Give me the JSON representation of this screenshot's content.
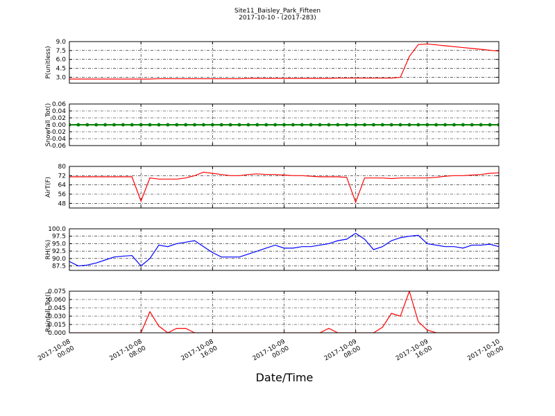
{
  "chart_data": [
    {
      "type": "line",
      "title": "Site11_Baisley_Park_Fifteen",
      "subtitle": "2017-10-10 - (2017-283)",
      "ylabel": "P(unitless)",
      "color": "#ff0000",
      "x": [
        "2017-10-08 00:00",
        "2017-10-08 01:00",
        "2017-10-08 02:00",
        "2017-10-08 03:00",
        "2017-10-08 04:00",
        "2017-10-08 05:00",
        "2017-10-08 06:00",
        "2017-10-08 07:00",
        "2017-10-08 08:00",
        "2017-10-08 09:00",
        "2017-10-08 10:00",
        "2017-10-08 11:00",
        "2017-10-08 12:00",
        "2017-10-08 13:00",
        "2017-10-08 14:00",
        "2017-10-08 15:00",
        "2017-10-08 16:00",
        "2017-10-08 17:00",
        "2017-10-08 18:00",
        "2017-10-08 19:00",
        "2017-10-08 20:00",
        "2017-10-08 21:00",
        "2017-10-08 22:00",
        "2017-10-08 23:00",
        "2017-10-09 00:00",
        "2017-10-09 01:00",
        "2017-10-09 02:00",
        "2017-10-09 03:00",
        "2017-10-09 04:00",
        "2017-10-09 05:00",
        "2017-10-09 06:00",
        "2017-10-09 07:00",
        "2017-10-09 08:00",
        "2017-10-09 09:00",
        "2017-10-09 10:00",
        "2017-10-09 11:00",
        "2017-10-09 12:00",
        "2017-10-09 13:00",
        "2017-10-09 14:00",
        "2017-10-09 15:00",
        "2017-10-09 16:00",
        "2017-10-09 17:00",
        "2017-10-09 18:00",
        "2017-10-09 19:00",
        "2017-10-09 20:00",
        "2017-10-09 21:00",
        "2017-10-09 22:00",
        "2017-10-09 23:00",
        "2017-10-10 00:00"
      ],
      "values": [
        2.7,
        2.7,
        2.7,
        2.7,
        2.7,
        2.7,
        2.7,
        2.7,
        2.7,
        2.7,
        2.75,
        2.75,
        2.75,
        2.75,
        2.75,
        2.75,
        2.75,
        2.75,
        2.75,
        2.75,
        2.8,
        2.8,
        2.8,
        2.8,
        2.8,
        2.8,
        2.8,
        2.8,
        2.8,
        2.8,
        2.85,
        2.85,
        2.85,
        2.85,
        2.85,
        2.85,
        2.85,
        3.0,
        6.5,
        8.5,
        8.6,
        8.45,
        8.3,
        8.15,
        8.0,
        7.85,
        7.7,
        7.55,
        7.4
      ],
      "xlim": [
        "2017-10-08 00:00",
        "2017-10-10 00:00"
      ],
      "xticks": [
        "2017-10-08 00:00",
        "2017-10-08 08:00",
        "2017-10-08 16:00",
        "2017-10-09 00:00",
        "2017-10-09 08:00",
        "2017-10-09 16:00",
        "2017-10-10 00:00"
      ],
      "ylim": [
        2,
        9
      ],
      "yticks": [
        {
          "value": 3,
          "label": "3.0"
        },
        4.5,
        {
          "value": 6,
          "label": "6.0"
        },
        7.5,
        {
          "value": 9,
          "label": "9.0"
        }
      ],
      "grid": true
    },
    {
      "type": "line",
      "ylabel": "Snowfall_Tot()",
      "color": "#008000",
      "markers": true,
      "x": [
        "2017-10-08 00:00",
        "2017-10-08 01:00",
        "2017-10-08 02:00",
        "2017-10-08 03:00",
        "2017-10-08 04:00",
        "2017-10-08 05:00",
        "2017-10-08 06:00",
        "2017-10-08 07:00",
        "2017-10-08 08:00",
        "2017-10-08 09:00",
        "2017-10-08 10:00",
        "2017-10-08 11:00",
        "2017-10-08 12:00",
        "2017-10-08 13:00",
        "2017-10-08 14:00",
        "2017-10-08 15:00",
        "2017-10-08 16:00",
        "2017-10-08 17:00",
        "2017-10-08 18:00",
        "2017-10-08 19:00",
        "2017-10-08 20:00",
        "2017-10-08 21:00",
        "2017-10-08 22:00",
        "2017-10-08 23:00",
        "2017-10-09 00:00",
        "2017-10-09 01:00",
        "2017-10-09 02:00",
        "2017-10-09 03:00",
        "2017-10-09 04:00",
        "2017-10-09 05:00",
        "2017-10-09 06:00",
        "2017-10-09 07:00",
        "2017-10-09 08:00",
        "2017-10-09 09:00",
        "2017-10-09 10:00",
        "2017-10-09 11:00",
        "2017-10-09 12:00",
        "2017-10-09 13:00",
        "2017-10-09 14:00",
        "2017-10-09 15:00",
        "2017-10-09 16:00",
        "2017-10-09 17:00",
        "2017-10-09 18:00",
        "2017-10-09 19:00",
        "2017-10-09 20:00",
        "2017-10-09 21:00",
        "2017-10-09 22:00",
        "2017-10-09 23:00",
        "2017-10-10 00:00"
      ],
      "values": [
        0,
        0,
        0,
        0,
        0,
        0,
        0,
        0,
        0,
        0,
        0,
        0,
        0,
        0,
        0,
        0,
        0,
        0,
        0,
        0,
        0,
        0,
        0,
        0,
        0,
        0,
        0,
        0,
        0,
        0,
        0,
        0,
        0,
        0,
        0,
        0,
        0,
        0,
        0,
        0,
        0,
        0,
        0,
        0,
        0,
        0,
        0,
        0,
        0
      ],
      "xlim": [
        "2017-10-08 00:00",
        "2017-10-10 00:00"
      ],
      "xticks": [
        "2017-10-08 00:00",
        "2017-10-08 08:00",
        "2017-10-08 16:00",
        "2017-10-09 00:00",
        "2017-10-09 08:00",
        "2017-10-09 16:00",
        "2017-10-10 00:00"
      ],
      "ylim": [
        -0.06,
        0.06
      ],
      "yticks": [
        -0.06,
        -0.04,
        -0.02,
        {
          "value": 0,
          "label": "0.00"
        },
        0.02,
        0.04,
        0.06
      ],
      "grid": true
    },
    {
      "type": "line",
      "ylabel": "AirT(F)",
      "color": "#ff0000",
      "x": [
        "2017-10-08 00:00",
        "2017-10-08 01:00",
        "2017-10-08 02:00",
        "2017-10-08 03:00",
        "2017-10-08 04:00",
        "2017-10-08 05:00",
        "2017-10-08 06:00",
        "2017-10-08 07:00",
        "2017-10-08 08:00",
        "2017-10-08 09:00",
        "2017-10-08 10:00",
        "2017-10-08 11:00",
        "2017-10-08 12:00",
        "2017-10-08 13:00",
        "2017-10-08 14:00",
        "2017-10-08 15:00",
        "2017-10-08 16:00",
        "2017-10-08 17:00",
        "2017-10-08 18:00",
        "2017-10-08 19:00",
        "2017-10-08 20:00",
        "2017-10-08 21:00",
        "2017-10-08 22:00",
        "2017-10-08 23:00",
        "2017-10-09 00:00",
        "2017-10-09 01:00",
        "2017-10-09 02:00",
        "2017-10-09 03:00",
        "2017-10-09 04:00",
        "2017-10-09 05:00",
        "2017-10-09 06:00",
        "2017-10-09 07:00",
        "2017-10-09 08:00",
        "2017-10-09 09:00",
        "2017-10-09 10:00",
        "2017-10-09 11:00",
        "2017-10-09 12:00",
        "2017-10-09 13:00",
        "2017-10-09 14:00",
        "2017-10-09 15:00",
        "2017-10-09 16:00",
        "2017-10-09 17:00",
        "2017-10-09 18:00",
        "2017-10-09 19:00",
        "2017-10-09 20:00",
        "2017-10-09 21:00",
        "2017-10-09 22:00",
        "2017-10-09 23:00",
        "2017-10-10 00:00"
      ],
      "values": [
        71,
        71,
        71,
        71,
        71,
        71,
        71,
        71,
        50,
        70,
        69,
        69,
        69,
        70,
        72,
        75,
        74,
        73,
        72,
        72,
        73,
        73.5,
        73,
        73,
        72.5,
        72,
        72,
        71.5,
        71,
        71,
        71,
        70.5,
        49,
        70,
        70,
        70,
        69.5,
        70,
        70,
        70,
        70,
        70.5,
        71.5,
        72,
        72,
        72.5,
        73,
        74,
        74.5
      ],
      "xlim": [
        "2017-10-08 00:00",
        "2017-10-10 00:00"
      ],
      "xticks": [
        "2017-10-08 00:00",
        "2017-10-08 08:00",
        "2017-10-08 16:00",
        "2017-10-09 00:00",
        "2017-10-09 08:00",
        "2017-10-09 16:00",
        "2017-10-10 00:00"
      ],
      "ylim": [
        44,
        80
      ],
      "yticks": [
        48,
        56,
        64,
        72,
        80
      ],
      "grid": true
    },
    {
      "type": "line",
      "ylabel": "RH(%)",
      "color": "#0000ff",
      "x": [
        "2017-10-08 00:00",
        "2017-10-08 01:00",
        "2017-10-08 02:00",
        "2017-10-08 03:00",
        "2017-10-08 04:00",
        "2017-10-08 05:00",
        "2017-10-08 06:00",
        "2017-10-08 07:00",
        "2017-10-08 08:00",
        "2017-10-08 09:00",
        "2017-10-08 10:00",
        "2017-10-08 11:00",
        "2017-10-08 12:00",
        "2017-10-08 13:00",
        "2017-10-08 14:00",
        "2017-10-08 15:00",
        "2017-10-08 16:00",
        "2017-10-08 17:00",
        "2017-10-08 18:00",
        "2017-10-08 19:00",
        "2017-10-08 20:00",
        "2017-10-08 21:00",
        "2017-10-08 22:00",
        "2017-10-08 23:00",
        "2017-10-09 00:00",
        "2017-10-09 01:00",
        "2017-10-09 02:00",
        "2017-10-09 03:00",
        "2017-10-09 04:00",
        "2017-10-09 05:00",
        "2017-10-09 06:00",
        "2017-10-09 07:00",
        "2017-10-09 08:00",
        "2017-10-09 09:00",
        "2017-10-09 10:00",
        "2017-10-09 11:00",
        "2017-10-09 12:00",
        "2017-10-09 13:00",
        "2017-10-09 14:00",
        "2017-10-09 15:00",
        "2017-10-09 16:00",
        "2017-10-09 17:00",
        "2017-10-09 18:00",
        "2017-10-09 19:00",
        "2017-10-09 20:00",
        "2017-10-09 21:00",
        "2017-10-09 22:00",
        "2017-10-09 23:00",
        "2017-10-10 00:00"
      ],
      "values": [
        89,
        87.5,
        87.8,
        88.5,
        89.5,
        90.5,
        90.8,
        91,
        87.5,
        90,
        94.5,
        94,
        95,
        95.5,
        96,
        94,
        92,
        90.5,
        90.5,
        90.5,
        91.5,
        92.5,
        93.5,
        94.5,
        93.5,
        93.5,
        94,
        94,
        94.5,
        95,
        96,
        96.5,
        98.5,
        96.5,
        93,
        94,
        96,
        97,
        97.5,
        97.8,
        95,
        94.5,
        94,
        94,
        93.5,
        94.5,
        94.5,
        94.8,
        94
      ],
      "xlim": [
        "2017-10-08 00:00",
        "2017-10-10 00:00"
      ],
      "xticks": [
        "2017-10-08 00:00",
        "2017-10-08 08:00",
        "2017-10-08 16:00",
        "2017-10-09 00:00",
        "2017-10-09 08:00",
        "2017-10-09 16:00",
        "2017-10-10 00:00"
      ],
      "ylim": [
        86,
        100
      ],
      "yticks": [
        87.5,
        {
          "value": 90,
          "label": "90.0"
        },
        92.5,
        {
          "value": 95,
          "label": "95.0"
        },
        97.5,
        {
          "value": 100,
          "label": "100.0"
        }
      ],
      "grid": true
    },
    {
      "type": "line",
      "ylabel": "Rainfall_Tot()",
      "xlabel": "Date/Time",
      "color": "#ff0000",
      "x": [
        "2017-10-08 00:00",
        "2017-10-08 01:00",
        "2017-10-08 02:00",
        "2017-10-08 03:00",
        "2017-10-08 04:00",
        "2017-10-08 05:00",
        "2017-10-08 06:00",
        "2017-10-08 07:00",
        "2017-10-08 08:00",
        "2017-10-08 09:00",
        "2017-10-08 10:00",
        "2017-10-08 11:00",
        "2017-10-08 12:00",
        "2017-10-08 13:00",
        "2017-10-08 14:00",
        "2017-10-08 15:00",
        "2017-10-08 16:00",
        "2017-10-08 17:00",
        "2017-10-08 18:00",
        "2017-10-08 19:00",
        "2017-10-08 20:00",
        "2017-10-08 21:00",
        "2017-10-08 22:00",
        "2017-10-08 23:00",
        "2017-10-09 00:00",
        "2017-10-09 01:00",
        "2017-10-09 02:00",
        "2017-10-09 03:00",
        "2017-10-09 04:00",
        "2017-10-09 05:00",
        "2017-10-09 06:00",
        "2017-10-09 07:00",
        "2017-10-09 08:00",
        "2017-10-09 09:00",
        "2017-10-09 10:00",
        "2017-10-09 11:00",
        "2017-10-09 12:00",
        "2017-10-09 13:00",
        "2017-10-09 14:00",
        "2017-10-09 15:00",
        "2017-10-09 16:00",
        "2017-10-09 17:00",
        "2017-10-09 18:00",
        "2017-10-09 19:00",
        "2017-10-09 20:00",
        "2017-10-09 21:00",
        "2017-10-09 22:00",
        "2017-10-09 23:00",
        "2017-10-10 00:00"
      ],
      "values": [
        0,
        0,
        0,
        0,
        0,
        0,
        0,
        0,
        0,
        0.038,
        0.012,
        0,
        0.008,
        0.008,
        0,
        0,
        0,
        0,
        0,
        0,
        0,
        0,
        0,
        0,
        0,
        0,
        0,
        0,
        0,
        0.008,
        0,
        0,
        0,
        0,
        0,
        0.01,
        0.035,
        0.03,
        0.075,
        0.02,
        0.005,
        0,
        0,
        0,
        0,
        0,
        0,
        0,
        0
      ],
      "xlim": [
        "2017-10-08 00:00",
        "2017-10-10 00:00"
      ],
      "xticks": [
        "2017-10-08 00:00",
        "2017-10-08 08:00",
        "2017-10-08 16:00",
        "2017-10-09 00:00",
        "2017-10-09 08:00",
        "2017-10-09 16:00",
        "2017-10-10 00:00"
      ],
      "ylim": [
        0,
        0.075
      ],
      "yticks": [
        {
          "value": 0,
          "label": "0.000"
        },
        0.015,
        {
          "value": 0.03,
          "label": "0.030"
        },
        0.045,
        {
          "value": 0.06,
          "label": "0.060"
        },
        0.075
      ],
      "xticklabels": true,
      "grid": true
    }
  ]
}
